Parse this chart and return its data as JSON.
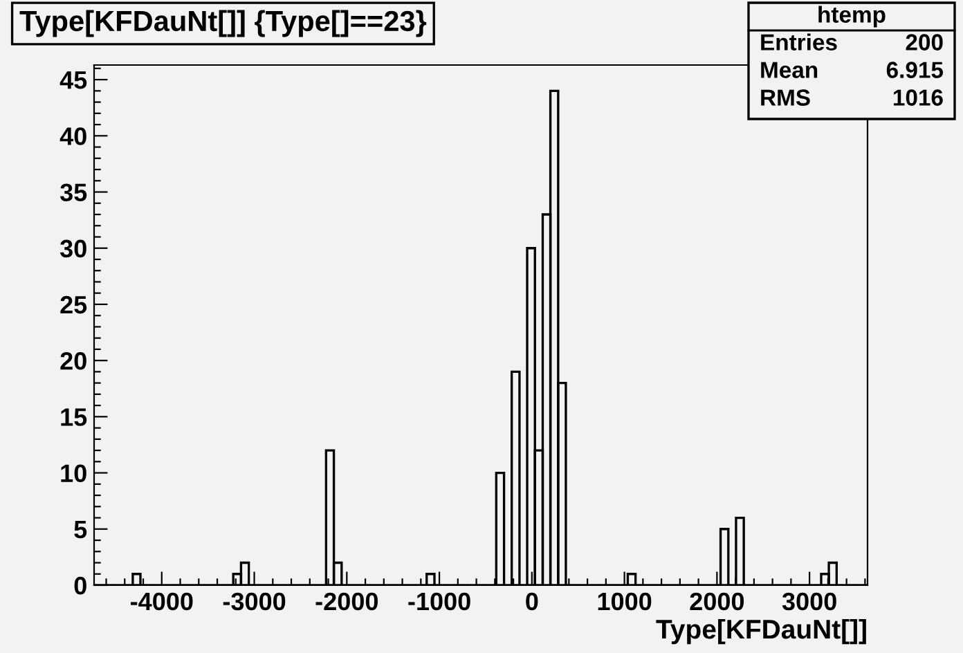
{
  "chart_data": {
    "type": "histogram",
    "title": "Type[KFDauNt[]] {Type[]==23}",
    "xlabel": "Type[KFDauNt[]]",
    "bins": [
      -4731,
      -4647,
      -4564,
      -4480,
      -4397,
      -4313,
      -4230,
      -4146,
      -4062,
      -3979,
      -3895,
      -3812,
      -3728,
      -3644,
      -3561,
      -3477,
      -3394,
      -3310,
      -3227,
      -3143,
      -3059,
      -2976,
      -2892,
      -2809,
      -2725,
      -2641,
      -2558,
      -2474,
      -2391,
      -2307,
      -2224,
      -2140,
      -2056,
      -1973,
      -1889,
      -1806,
      -1722,
      -1639,
      -1555,
      -1471,
      -1388,
      -1304,
      -1221,
      -1137,
      -1053,
      -970,
      -886,
      -803,
      -719,
      -636,
      -552,
      -468,
      -385,
      -301,
      -218,
      -134,
      -51,
      33,
      117,
      200,
      284,
      367,
      451,
      535,
      618,
      702,
      785,
      869,
      952,
      1036,
      1120,
      1203,
      1287,
      1370,
      1454,
      1538,
      1621,
      1705,
      1788,
      1872,
      1955,
      2039,
      2123,
      2206,
      2290,
      2373,
      2457,
      2540,
      2624,
      2708,
      2791,
      2875,
      2958,
      3042,
      3126,
      3209,
      3293,
      3376,
      3460,
      3543,
      3627
    ],
    "values": [
      0,
      0,
      0,
      0,
      0,
      1,
      0,
      0,
      0,
      0,
      0,
      0,
      0,
      0,
      0,
      0,
      0,
      0,
      1,
      2,
      0,
      0,
      0,
      0,
      0,
      0,
      0,
      0,
      0,
      0,
      12,
      2,
      0,
      0,
      0,
      0,
      0,
      0,
      0,
      0,
      0,
      0,
      0,
      1,
      0,
      0,
      0,
      0,
      0,
      0,
      0,
      0,
      10,
      0,
      19,
      0,
      30,
      12,
      33,
      44,
      18,
      0,
      0,
      0,
      0,
      0,
      0,
      0,
      0,
      1,
      0,
      0,
      0,
      0,
      0,
      0,
      0,
      0,
      0,
      0,
      0,
      5,
      0,
      6,
      0,
      0,
      0,
      0,
      0,
      0,
      0,
      0,
      0,
      0,
      1,
      2,
      0,
      0,
      0,
      0
    ],
    "color": "#000000",
    "xlim": [
      -4731,
      3627
    ],
    "xticks": [
      -4000,
      -3000,
      -2000,
      -1000,
      0,
      1000,
      2000,
      3000
    ],
    "ylim": [
      0,
      46.3
    ],
    "yticks": [
      0,
      5,
      10,
      15,
      20,
      25,
      30,
      35,
      40,
      45
    ],
    "grid": false,
    "annotations": [
      "htemp",
      "Entries",
      "200",
      "Mean",
      "6.915",
      "RMS",
      "1016"
    ]
  }
}
